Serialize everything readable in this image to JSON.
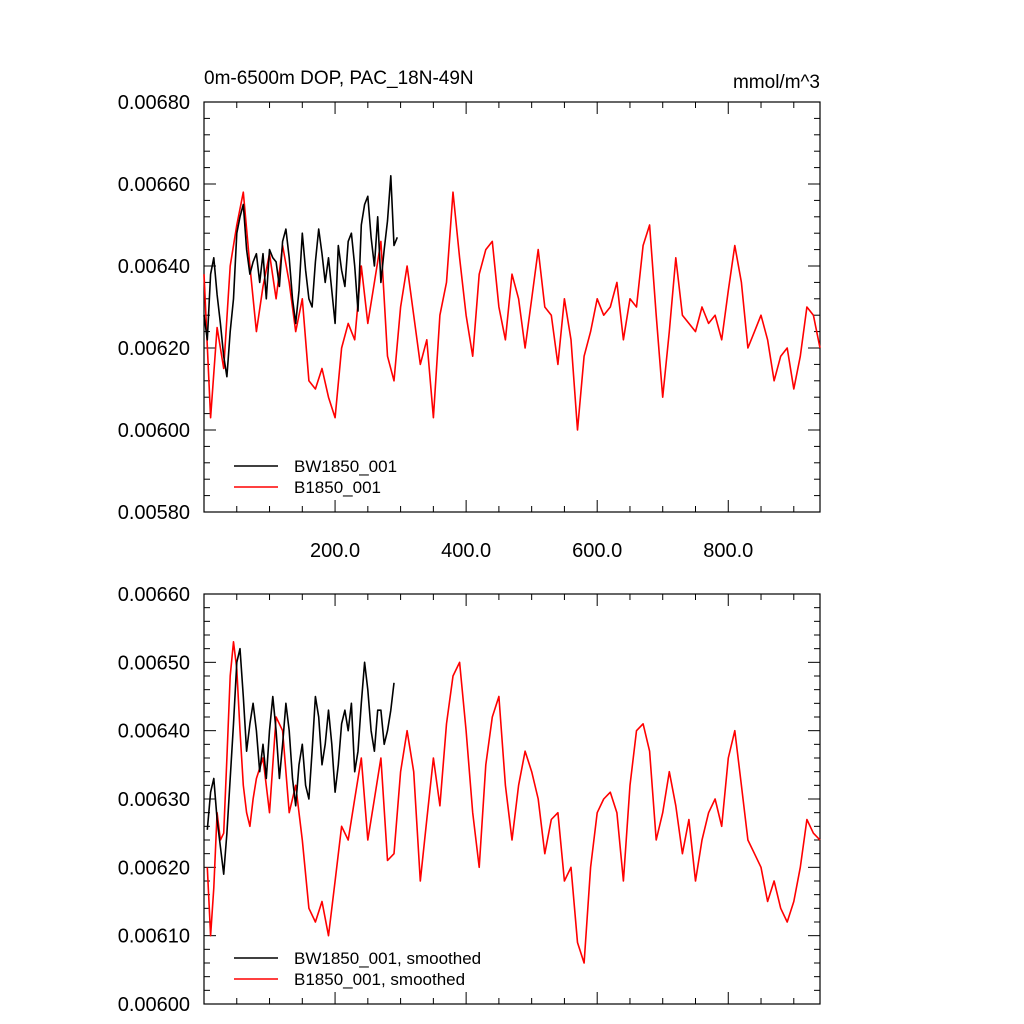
{
  "chart_data": [
    {
      "type": "line",
      "title": "0m-6500m DOP, PAC_18N-49N",
      "units": "mmol/m^3",
      "xlim": [
        0,
        940
      ],
      "ylim": [
        0.0058,
        0.0068
      ],
      "x_ticks": [
        200,
        400,
        600,
        800
      ],
      "x_tick_labels": [
        "200.0",
        "400.0",
        "600.0",
        "800.0"
      ],
      "y_ticks": [
        0.0058,
        0.006,
        0.0062,
        0.0064,
        0.0066,
        0.0068
      ],
      "y_tick_labels": [
        "0.00580",
        "0.00600",
        "0.00620",
        "0.00640",
        "0.00660",
        "0.00680"
      ],
      "legend_position": "bottom-left",
      "series": [
        {
          "name": "BW1850_001",
          "color": "#000000",
          "x": [
            0,
            5,
            10,
            15,
            20,
            25,
            30,
            35,
            40,
            45,
            50,
            55,
            60,
            65,
            70,
            75,
            80,
            85,
            90,
            95,
            100,
            105,
            110,
            115,
            120,
            125,
            130,
            135,
            140,
            145,
            150,
            155,
            160,
            165,
            170,
            175,
            180,
            185,
            190,
            195,
            200,
            205,
            210,
            215,
            220,
            225,
            230,
            235,
            240,
            245,
            250,
            255,
            260,
            265,
            270,
            275,
            280,
            285,
            290,
            295
          ],
          "values": [
            0.00628,
            0.00622,
            0.00638,
            0.00642,
            0.00633,
            0.00626,
            0.00618,
            0.00613,
            0.00624,
            0.00632,
            0.00648,
            0.00652,
            0.00655,
            0.00644,
            0.00638,
            0.00641,
            0.00643,
            0.00636,
            0.00643,
            0.00632,
            0.00644,
            0.00642,
            0.00641,
            0.00635,
            0.00646,
            0.00649,
            0.00642,
            0.00632,
            0.00626,
            0.00634,
            0.00648,
            0.00639,
            0.00632,
            0.0063,
            0.00641,
            0.00649,
            0.00643,
            0.00636,
            0.00642,
            0.00634,
            0.00626,
            0.00645,
            0.00639,
            0.00635,
            0.00646,
            0.00648,
            0.0064,
            0.00629,
            0.0065,
            0.00655,
            0.00657,
            0.00647,
            0.0064,
            0.00652,
            0.00636,
            0.00644,
            0.00651,
            0.00662,
            0.00645,
            0.00647
          ]
        },
        {
          "name": "B1850_001",
          "color": "#ff0000",
          "x": [
            0,
            10,
            20,
            30,
            40,
            50,
            60,
            70,
            80,
            90,
            100,
            110,
            120,
            130,
            140,
            150,
            160,
            170,
            180,
            190,
            200,
            210,
            220,
            230,
            240,
            250,
            260,
            270,
            280,
            290,
            300,
            310,
            320,
            330,
            340,
            350,
            360,
            370,
            380,
            390,
            400,
            410,
            420,
            430,
            440,
            450,
            460,
            470,
            480,
            490,
            500,
            510,
            520,
            530,
            540,
            550,
            560,
            570,
            580,
            590,
            600,
            610,
            620,
            630,
            640,
            650,
            660,
            670,
            680,
            690,
            700,
            710,
            720,
            730,
            740,
            750,
            760,
            770,
            780,
            790,
            800,
            810,
            820,
            830,
            840,
            850,
            860,
            870,
            880,
            890,
            900,
            910,
            920,
            930,
            940
          ],
          "values": [
            0.00638,
            0.00603,
            0.00625,
            0.00615,
            0.0064,
            0.0065,
            0.00658,
            0.0064,
            0.00624,
            0.00635,
            0.00643,
            0.00632,
            0.00645,
            0.00636,
            0.00624,
            0.00632,
            0.00612,
            0.0061,
            0.00615,
            0.00608,
            0.00603,
            0.0062,
            0.00626,
            0.00622,
            0.0064,
            0.00626,
            0.00636,
            0.00646,
            0.00618,
            0.00612,
            0.0063,
            0.0064,
            0.00628,
            0.00616,
            0.00622,
            0.00603,
            0.00628,
            0.00636,
            0.00658,
            0.00642,
            0.00628,
            0.00618,
            0.00638,
            0.00644,
            0.00646,
            0.0063,
            0.00622,
            0.00638,
            0.00632,
            0.0062,
            0.00632,
            0.00644,
            0.0063,
            0.00628,
            0.00616,
            0.00632,
            0.00622,
            0.006,
            0.00618,
            0.00624,
            0.00632,
            0.00628,
            0.0063,
            0.00636,
            0.00622,
            0.00632,
            0.0063,
            0.00645,
            0.0065,
            0.00628,
            0.00608,
            0.00624,
            0.00642,
            0.00628,
            0.00626,
            0.00624,
            0.0063,
            0.00626,
            0.00628,
            0.00622,
            0.00634,
            0.00645,
            0.00636,
            0.0062,
            0.00624,
            0.00628,
            0.00622,
            0.00612,
            0.00618,
            0.0062,
            0.0061,
            0.00618,
            0.0063,
            0.00628,
            0.0062
          ]
        }
      ]
    },
    {
      "type": "line",
      "title": "",
      "units": "",
      "xlim": [
        0,
        940
      ],
      "ylim": [
        0.006,
        0.0066
      ],
      "x_ticks": [
        200,
        400,
        600,
        800
      ],
      "x_tick_labels": [],
      "y_ticks": [
        0.006,
        0.0061,
        0.0062,
        0.0063,
        0.0064,
        0.0065,
        0.0066
      ],
      "y_tick_labels": [
        "0.00600",
        "0.00610",
        "0.00620",
        "0.00630",
        "0.00640",
        "0.00650",
        "0.00660"
      ],
      "legend_position": "bottom-left",
      "series": [
        {
          "name": "BW1850_001, smoothed",
          "color": "#000000",
          "x": [
            5,
            10,
            15,
            20,
            25,
            30,
            35,
            40,
            45,
            50,
            55,
            60,
            65,
            70,
            75,
            80,
            85,
            90,
            95,
            100,
            105,
            110,
            115,
            120,
            125,
            130,
            135,
            140,
            145,
            150,
            155,
            160,
            165,
            170,
            175,
            180,
            185,
            190,
            195,
            200,
            205,
            210,
            215,
            220,
            225,
            230,
            235,
            240,
            245,
            250,
            255,
            260,
            265,
            270,
            275,
            280,
            285,
            290
          ],
          "values": [
            0.006255,
            0.00631,
            0.00633,
            0.00627,
            0.00623,
            0.00619,
            0.00625,
            0.00633,
            0.00641,
            0.0065,
            0.00652,
            0.00645,
            0.00637,
            0.00641,
            0.00644,
            0.0064,
            0.00634,
            0.00638,
            0.00633,
            0.0064,
            0.00645,
            0.0064,
            0.00633,
            0.00638,
            0.00644,
            0.0064,
            0.00633,
            0.00629,
            0.00635,
            0.00638,
            0.00632,
            0.0063,
            0.00637,
            0.00645,
            0.00642,
            0.00635,
            0.00638,
            0.00643,
            0.00638,
            0.00631,
            0.00635,
            0.00641,
            0.00643,
            0.0064,
            0.00644,
            0.00634,
            0.00637,
            0.00644,
            0.0065,
            0.00646,
            0.0064,
            0.00637,
            0.00643,
            0.00643,
            0.00638,
            0.0064,
            0.00643,
            0.00647
          ]
        },
        {
          "name": "B1850_001, smoothed",
          "color": "#ff0000",
          "x": [
            5,
            10,
            15,
            20,
            25,
            30,
            35,
            40,
            45,
            50,
            55,
            60,
            65,
            70,
            75,
            80,
            90,
            100,
            110,
            120,
            130,
            140,
            150,
            160,
            170,
            180,
            190,
            200,
            210,
            220,
            230,
            240,
            250,
            260,
            270,
            280,
            290,
            300,
            310,
            320,
            330,
            340,
            350,
            360,
            370,
            380,
            390,
            400,
            410,
            420,
            430,
            440,
            450,
            460,
            470,
            480,
            490,
            500,
            510,
            520,
            530,
            540,
            550,
            560,
            570,
            580,
            590,
            600,
            610,
            620,
            630,
            640,
            650,
            660,
            670,
            680,
            690,
            700,
            710,
            720,
            730,
            740,
            750,
            760,
            770,
            780,
            790,
            800,
            810,
            820,
            830,
            840,
            850,
            860,
            870,
            880,
            890,
            900,
            910,
            920,
            930,
            940
          ],
          "values": [
            0.0062,
            0.0061,
            0.00617,
            0.00628,
            0.00624,
            0.00625,
            0.00636,
            0.00648,
            0.00653,
            0.00649,
            0.0064,
            0.00632,
            0.00628,
            0.00626,
            0.0063,
            0.00633,
            0.00636,
            0.00628,
            0.00642,
            0.0064,
            0.00628,
            0.00632,
            0.00624,
            0.00614,
            0.00612,
            0.00615,
            0.0061,
            0.00618,
            0.00626,
            0.00624,
            0.0063,
            0.00636,
            0.00624,
            0.0063,
            0.00636,
            0.00621,
            0.00622,
            0.00634,
            0.0064,
            0.00634,
            0.00618,
            0.00627,
            0.00636,
            0.00629,
            0.00641,
            0.00648,
            0.0065,
            0.0064,
            0.00628,
            0.0062,
            0.00635,
            0.00642,
            0.00645,
            0.00632,
            0.00624,
            0.00632,
            0.00637,
            0.00634,
            0.0063,
            0.00622,
            0.00627,
            0.00628,
            0.00618,
            0.0062,
            0.00609,
            0.00606,
            0.0062,
            0.00628,
            0.0063,
            0.00631,
            0.00628,
            0.00618,
            0.00632,
            0.0064,
            0.00641,
            0.00637,
            0.00624,
            0.00628,
            0.00634,
            0.00629,
            0.00622,
            0.00627,
            0.00618,
            0.00624,
            0.00628,
            0.0063,
            0.00626,
            0.00636,
            0.0064,
            0.00632,
            0.00624,
            0.00622,
            0.0062,
            0.00615,
            0.00618,
            0.00614,
            0.00612,
            0.00615,
            0.0062,
            0.00627,
            0.00625,
            0.00624
          ]
        }
      ]
    }
  ]
}
